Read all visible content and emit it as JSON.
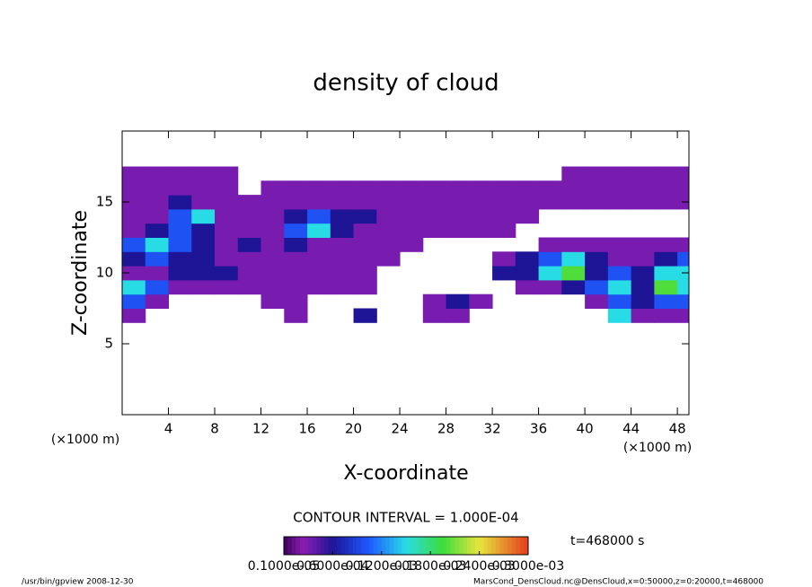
{
  "chart_data": {
    "type": "heatmap",
    "title": "density of cloud",
    "x_label": "X-coordinate",
    "y_label": "Z-coordinate",
    "x_unit": "(×1000 m)",
    "y_unit": "(×1000 m)",
    "xlim": [
      0,
      49
    ],
    "ylim": [
      0,
      20
    ],
    "xticks": [
      4,
      8,
      12,
      16,
      20,
      24,
      28,
      32,
      36,
      40,
      44,
      48
    ],
    "yticks": [
      5,
      10,
      15
    ],
    "x": [
      1,
      3,
      5,
      7,
      9,
      11,
      13,
      15,
      17,
      19,
      21,
      23,
      25,
      27,
      29,
      31,
      33,
      35,
      37,
      39,
      41,
      43,
      45,
      47,
      49
    ],
    "z": [
      7,
      8,
      9,
      10,
      11,
      12,
      13,
      14,
      15,
      16,
      17
    ],
    "values": [
      [
        3e-05,
        null,
        null,
        null,
        null,
        null,
        null,
        3e-05,
        null,
        null,
        6e-05,
        null,
        null,
        3e-05,
        3e-05,
        null,
        null,
        null,
        null,
        null,
        null,
        0.00015,
        3e-05,
        3e-05,
        3e-05
      ],
      [
        0.0001,
        3e-05,
        null,
        null,
        null,
        null,
        3e-05,
        3e-05,
        null,
        null,
        null,
        null,
        null,
        3e-05,
        6e-05,
        3e-05,
        null,
        null,
        null,
        null,
        3e-05,
        0.0001,
        6e-05,
        0.0001,
        0.0001
      ],
      [
        0.00015,
        0.0001,
        3e-05,
        3e-05,
        3e-05,
        3e-05,
        3e-05,
        3e-05,
        3e-05,
        3e-05,
        3e-05,
        null,
        null,
        null,
        null,
        null,
        null,
        3e-05,
        3e-05,
        6e-05,
        0.0001,
        0.00015,
        6e-05,
        0.0002,
        0.00015
      ],
      [
        3e-05,
        3e-05,
        6e-05,
        6e-05,
        6e-05,
        3e-05,
        3e-05,
        3e-05,
        3e-05,
        3e-05,
        3e-05,
        null,
        null,
        null,
        null,
        null,
        6e-05,
        6e-05,
        0.00015,
        0.0002,
        6e-05,
        0.0001,
        6e-05,
        0.00015,
        0.00015
      ],
      [
        6e-05,
        0.0001,
        6e-05,
        6e-05,
        3e-05,
        3e-05,
        3e-05,
        3e-05,
        3e-05,
        3e-05,
        3e-05,
        3e-05,
        null,
        null,
        null,
        null,
        3e-05,
        6e-05,
        0.0001,
        0.00015,
        6e-05,
        3e-05,
        3e-05,
        6e-05,
        0.0001
      ],
      [
        0.0001,
        0.00015,
        0.0001,
        6e-05,
        3e-05,
        6e-05,
        3e-05,
        6e-05,
        3e-05,
        3e-05,
        3e-05,
        3e-05,
        3e-05,
        null,
        null,
        null,
        null,
        null,
        3e-05,
        3e-05,
        3e-05,
        3e-05,
        3e-05,
        3e-05,
        3e-05
      ],
      [
        3e-05,
        6e-05,
        0.0001,
        6e-05,
        3e-05,
        3e-05,
        3e-05,
        0.0001,
        0.00015,
        6e-05,
        3e-05,
        3e-05,
        3e-05,
        3e-05,
        3e-05,
        3e-05,
        3e-05,
        null,
        null,
        null,
        null,
        null,
        null,
        null,
        null
      ],
      [
        3e-05,
        3e-05,
        0.0001,
        0.00015,
        3e-05,
        3e-05,
        3e-05,
        6e-05,
        0.0001,
        6e-05,
        6e-05,
        3e-05,
        3e-05,
        3e-05,
        3e-05,
        3e-05,
        3e-05,
        3e-05,
        null,
        null,
        null,
        null,
        null,
        null,
        null
      ],
      [
        3e-05,
        3e-05,
        6e-05,
        3e-05,
        3e-05,
        3e-05,
        3e-05,
        3e-05,
        3e-05,
        3e-05,
        3e-05,
        3e-05,
        3e-05,
        3e-05,
        3e-05,
        3e-05,
        3e-05,
        3e-05,
        3e-05,
        3e-05,
        3e-05,
        3e-05,
        3e-05,
        3e-05,
        3e-05
      ],
      [
        3e-05,
        3e-05,
        3e-05,
        3e-05,
        3e-05,
        null,
        3e-05,
        3e-05,
        3e-05,
        3e-05,
        3e-05,
        3e-05,
        3e-05,
        3e-05,
        3e-05,
        3e-05,
        3e-05,
        3e-05,
        3e-05,
        3e-05,
        3e-05,
        3e-05,
        3e-05,
        3e-05,
        3e-05
      ],
      [
        3e-05,
        3e-05,
        3e-05,
        3e-05,
        3e-05,
        null,
        null,
        null,
        null,
        null,
        null,
        null,
        null,
        null,
        null,
        null,
        null,
        null,
        null,
        3e-05,
        3e-05,
        3e-05,
        3e-05,
        3e-05,
        3e-05
      ]
    ],
    "clim": [
      0,
      0.0003
    ],
    "colorbar_ticks": [
      {
        "value": 0,
        "label": "0.1000e-05"
      },
      {
        "value": 6e-05,
        "label": "0.6000e-04"
      },
      {
        "value": 0.00012,
        "label": "0.1200e-03"
      },
      {
        "value": 0.00018,
        "label": "0.1800e-03"
      },
      {
        "value": 0.00024,
        "label": "0.2400e-03"
      },
      {
        "value": 0.0003,
        "label": "0.3000e-03"
      }
    ],
    "contour_interval": "CONTOUR INTERVAL = 1.000E-04",
    "time_label": "t=468000 s",
    "footer_left": "/usr/bin/gpview  2008-12-30",
    "footer_right": "MarsCond_DensCloud.nc@DensCloud,x=0:50000,z=0:20000,t=468000"
  }
}
